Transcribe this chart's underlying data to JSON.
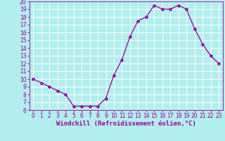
{
  "hours": [
    0,
    1,
    2,
    3,
    4,
    5,
    6,
    7,
    8,
    9,
    10,
    11,
    12,
    13,
    14,
    15,
    16,
    17,
    18,
    19,
    20,
    21,
    22,
    23
  ],
  "values": [
    10,
    9.5,
    9,
    8.5,
    8,
    6.5,
    6.5,
    6.5,
    6.5,
    7.5,
    10.5,
    12.5,
    15.5,
    17.5,
    18,
    19.5,
    19,
    19,
    19.5,
    19,
    16.5,
    14.5,
    13,
    12
  ],
  "line_color": "#990099",
  "marker_color": "#990099",
  "bg_color": "#b2eeee",
  "grid_color": "#ffffff",
  "xlabel": "Windchill (Refroidissement éolien,°C)",
  "ylim": [
    6,
    20
  ],
  "xlim_min": -0.5,
  "xlim_max": 23.5,
  "yticks": [
    6,
    7,
    8,
    9,
    10,
    11,
    12,
    13,
    14,
    15,
    16,
    17,
    18,
    19,
    20
  ],
  "xticks": [
    0,
    1,
    2,
    3,
    4,
    5,
    6,
    7,
    8,
    9,
    10,
    11,
    12,
    13,
    14,
    15,
    16,
    17,
    18,
    19,
    20,
    21,
    22,
    23
  ],
  "tick_fontsize": 5.5,
  "xlabel_fontsize": 6.5,
  "marker_size": 2.5,
  "line_width": 0.9
}
